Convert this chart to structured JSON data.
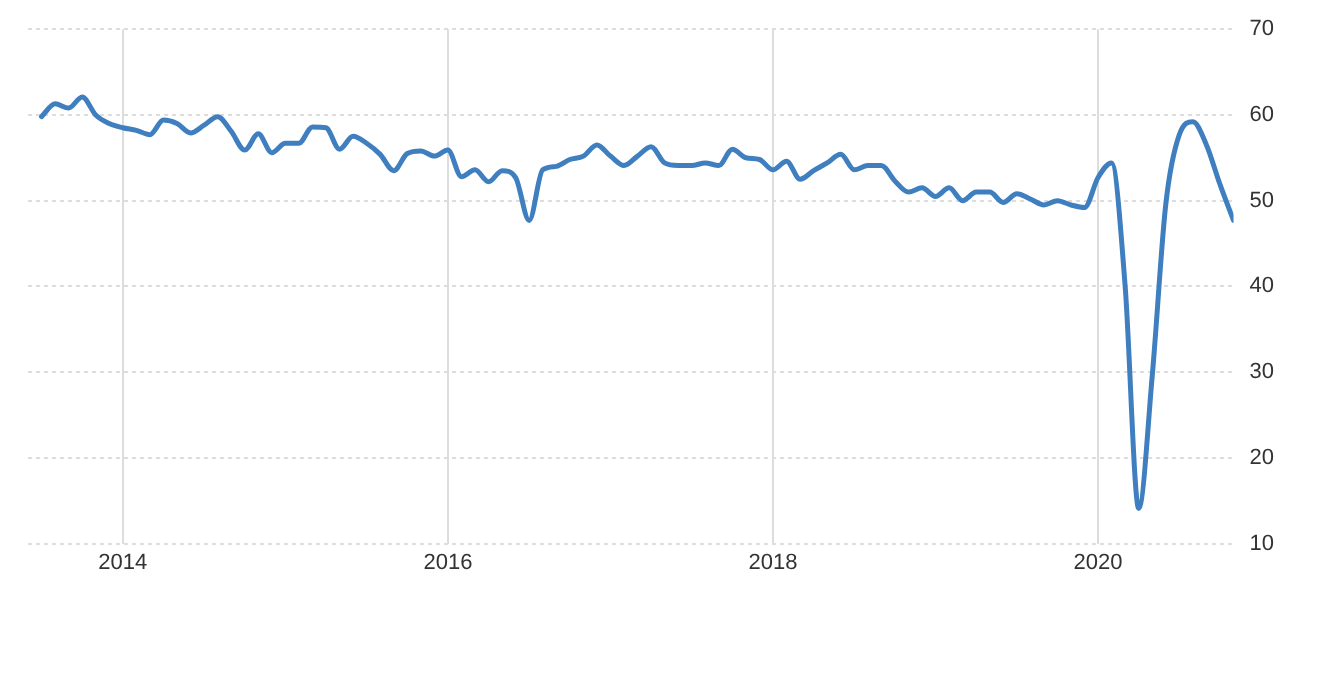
{
  "chart_data": {
    "type": "line",
    "x": [
      "2013-07",
      "2013-08",
      "2013-09",
      "2013-10",
      "2013-11",
      "2013-12",
      "2014-01",
      "2014-02",
      "2014-03",
      "2014-04",
      "2014-05",
      "2014-06",
      "2014-07",
      "2014-08",
      "2014-09",
      "2014-10",
      "2014-11",
      "2014-12",
      "2015-01",
      "2015-02",
      "2015-03",
      "2015-04",
      "2015-05",
      "2015-06",
      "2015-07",
      "2015-08",
      "2015-09",
      "2015-10",
      "2015-11",
      "2015-12",
      "2016-01",
      "2016-02",
      "2016-03",
      "2016-04",
      "2016-05",
      "2016-06",
      "2016-07",
      "2016-08",
      "2016-09",
      "2016-10",
      "2016-11",
      "2016-12",
      "2017-01",
      "2017-02",
      "2017-03",
      "2017-04",
      "2017-05",
      "2017-06",
      "2017-07",
      "2017-08",
      "2017-09",
      "2017-10",
      "2017-11",
      "2017-12",
      "2018-01",
      "2018-02",
      "2018-03",
      "2018-04",
      "2018-05",
      "2018-06",
      "2018-07",
      "2018-08",
      "2018-09",
      "2018-10",
      "2018-11",
      "2018-12",
      "2019-01",
      "2019-02",
      "2019-03",
      "2019-04",
      "2019-05",
      "2019-06",
      "2019-07",
      "2019-08",
      "2019-09",
      "2019-10",
      "2019-11",
      "2019-12",
      "2020-01",
      "2020-02",
      "2020-03",
      "2020-04",
      "2020-05",
      "2020-06",
      "2020-07",
      "2020-08",
      "2020-09",
      "2020-10",
      "2020-11"
    ],
    "series": [
      {
        "color": "#3f7fbf",
        "values": [
          59.8,
          61.3,
          60.8,
          62.1,
          60,
          59,
          58.5,
          58.2,
          57.7,
          59.4,
          59,
          57.9,
          58.8,
          59.8,
          58.1,
          55.9,
          57.8,
          55.6,
          56.7,
          56.7,
          58.6,
          58.5,
          56,
          57.5,
          56.7,
          55.4,
          53.5,
          55.5,
          55.8,
          55.2,
          55.9,
          52.8,
          53.6,
          52.2,
          53.5,
          52.7,
          47.7,
          53.6,
          54,
          54.8,
          55.2,
          56.5,
          55.2,
          54.1,
          55.2,
          56.3,
          54.4,
          54.1,
          54.1,
          54.4,
          54.1,
          56,
          55,
          54.8,
          53.6,
          54.6,
          52.5,
          53.5,
          54.4,
          55.4,
          53.6,
          54.1,
          54.1,
          52.3,
          51,
          51.5,
          50.5,
          51.5,
          50,
          51,
          51,
          49.8,
          50.8,
          50.2,
          49.5,
          50,
          49.5,
          49.2,
          52.7,
          54.4,
          40,
          14.1,
          29.6,
          49.6,
          57.7,
          59.2,
          56.5,
          51.9,
          47.7
        ]
      }
    ],
    "xlim": [
      "2013-06",
      "2020-11"
    ],
    "xticks": [
      "2014",
      "2016",
      "2018",
      "2020"
    ],
    "ylim": [
      10,
      70
    ],
    "yticks": [
      10,
      20,
      30,
      40,
      50,
      60,
      70
    ],
    "grid": true,
    "legend": false,
    "marker": "none",
    "line_style": "solid"
  }
}
